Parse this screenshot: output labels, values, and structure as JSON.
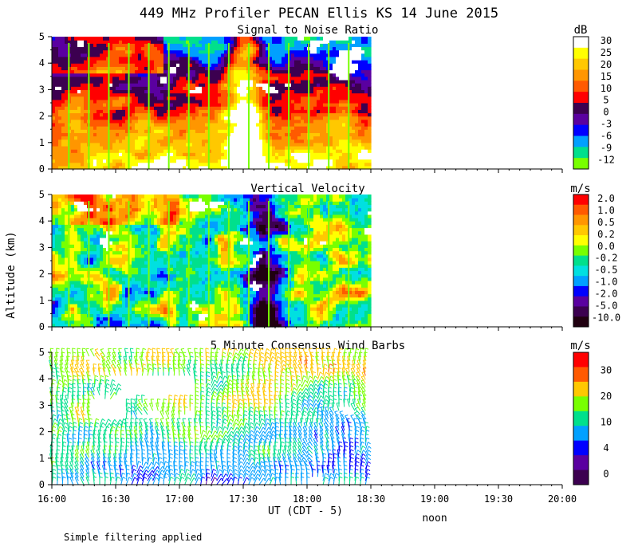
{
  "title": "449 MHz Profiler PECAN Ellis KS 14 June 2015",
  "ylabel": "Altitude (km)",
  "xlabel": "UT (CDT - 5)",
  "noon_label": "noon",
  "footer": "Simple filtering applied",
  "x_ticks": [
    "16:00",
    "16:30",
    "17:00",
    "17:30",
    "18:00",
    "18:30",
    "19:00",
    "19:30",
    "20:00"
  ],
  "chart_data": [
    {
      "type": "heatmap",
      "title": "Signal to Noise Ratio",
      "unit": "dB",
      "xlim": [
        "16:00",
        "20:00"
      ],
      "data_end": "18:30",
      "ylim": [
        0,
        5
      ],
      "y_ticks": [
        "0",
        "1",
        "2",
        "3",
        "4",
        "5"
      ],
      "colorbar": {
        "labels": [
          "30",
          "25",
          "20",
          "15",
          "10",
          "5",
          "0",
          "-3",
          "-6",
          "-9",
          "-12"
        ],
        "colors": [
          "#ffffff",
          "#ffff00",
          "#ffc800",
          "#ff9600",
          "#ff5a00",
          "#ff0000",
          "#3c0050",
          "#5a00a0",
          "#0000ff",
          "#00a0ff",
          "#00e08c",
          "#78ff00"
        ]
      }
    },
    {
      "type": "heatmap",
      "title": "Vertical Velocity",
      "unit": "m/s",
      "xlim": [
        "16:00",
        "20:00"
      ],
      "data_end": "18:30",
      "ylim": [
        0,
        5
      ],
      "y_ticks": [
        "0",
        "1",
        "2",
        "3",
        "4",
        "5"
      ],
      "colorbar": {
        "labels": [
          "2.0",
          "1.0",
          "0.5",
          "0.2",
          "0.0",
          "-0.2",
          "-0.5",
          "-1.0",
          "-2.0",
          "-5.0",
          "-10.0"
        ],
        "colors": [
          "#ff0000",
          "#ff5a00",
          "#ff9600",
          "#ffc800",
          "#ffff00",
          "#78ff00",
          "#00e08c",
          "#00e0e0",
          "#00a0ff",
          "#0000ff",
          "#5a00a0",
          "#3c0050",
          "#200010"
        ]
      }
    },
    {
      "type": "scatter",
      "title": "5 Minute Consensus Wind Barbs",
      "unit": "m/s",
      "xlim": [
        "16:00",
        "20:00"
      ],
      "data_end": "18:30",
      "ylim": [
        0,
        5
      ],
      "y_ticks": [
        "0",
        "1",
        "2",
        "3",
        "4",
        "5"
      ],
      "colorbar": {
        "labels": [
          "30",
          "20",
          "10",
          "4",
          "0"
        ],
        "colors": [
          "#ff0000",
          "#ff5a00",
          "#ffc800",
          "#78ff00",
          "#00e08c",
          "#00a0ff",
          "#0000ff",
          "#5a00a0",
          "#3c0050"
        ]
      }
    }
  ]
}
